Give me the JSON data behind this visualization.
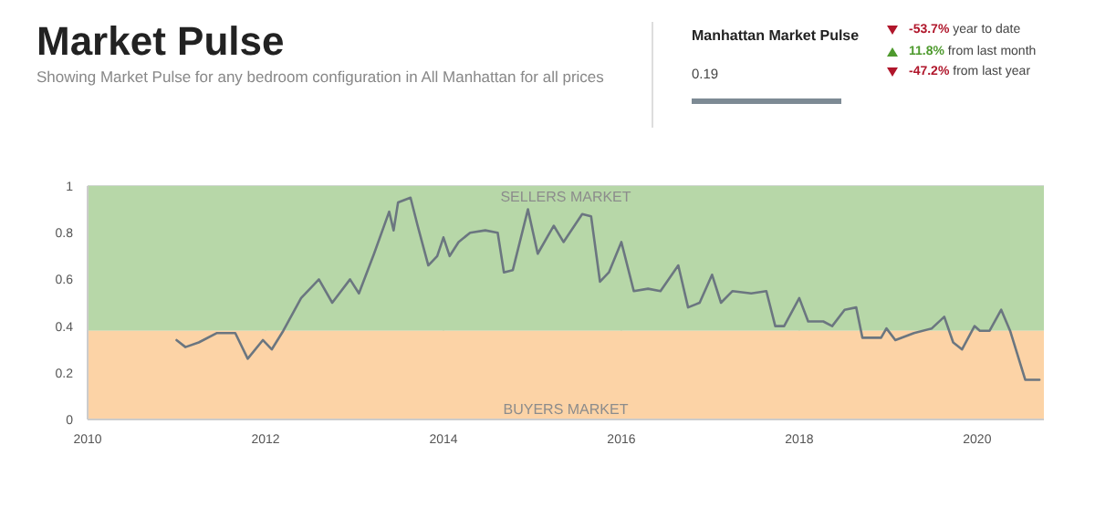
{
  "chart_data": {
    "type": "line",
    "title": "Market Pulse",
    "subtitle": "Showing Market Pulse for any bedroom configuration in All Manhattan for all prices",
    "annotations": [
      "Manhattan Market Pulse",
      "0.19",
      "-53.7% year to date",
      "11.8% from last month",
      "-47.2% from last year"
    ],
    "x": [
      2011.0,
      2011.1,
      2011.25,
      2011.45,
      2011.66,
      2011.8,
      2011.97,
      2012.07,
      2012.2,
      2012.4,
      2012.6,
      2012.75,
      2012.95,
      2013.05,
      2013.22,
      2013.39,
      2013.44,
      2013.49,
      2013.63,
      2013.71,
      2013.83,
      2013.93,
      2014.0,
      2014.07,
      2014.17,
      2014.3,
      2014.47,
      2014.61,
      2014.68,
      2014.78,
      2014.95,
      2015.06,
      2015.24,
      2015.35,
      2015.56,
      2015.66,
      2015.76,
      2015.86,
      2016.0,
      2016.14,
      2016.3,
      2016.44,
      2016.64,
      2016.75,
      2016.88,
      2017.02,
      2017.12,
      2017.25,
      2017.46,
      2017.63,
      2017.73,
      2017.83,
      2018.0,
      2018.1,
      2018.27,
      2018.37,
      2018.51,
      2018.64,
      2018.71,
      2018.92,
      2018.98,
      2019.08,
      2019.29,
      2019.49,
      2019.63,
      2019.73,
      2019.83,
      2019.97,
      2020.03,
      2020.14,
      2020.27,
      2020.37,
      2020.54,
      2020.7
    ],
    "series": [
      {
        "color": "#6b7680",
        "values": [
          0.34,
          0.31,
          0.33,
          0.37,
          0.37,
          0.26,
          0.34,
          0.3,
          0.38,
          0.52,
          0.6,
          0.5,
          0.6,
          0.54,
          0.71,
          0.89,
          0.81,
          0.93,
          0.95,
          0.83,
          0.66,
          0.7,
          0.78,
          0.7,
          0.76,
          0.8,
          0.81,
          0.8,
          0.63,
          0.64,
          0.9,
          0.71,
          0.83,
          0.76,
          0.88,
          0.87,
          0.59,
          0.63,
          0.76,
          0.55,
          0.56,
          0.55,
          0.66,
          0.48,
          0.5,
          0.62,
          0.5,
          0.55,
          0.54,
          0.55,
          0.4,
          0.4,
          0.52,
          0.42,
          0.42,
          0.4,
          0.47,
          0.48,
          0.35,
          0.35,
          0.39,
          0.34,
          0.37,
          0.39,
          0.44,
          0.33,
          0.3,
          0.4,
          0.38,
          0.38,
          0.47,
          0.38,
          0.17,
          0.17
        ]
      }
    ],
    "xlim": [
      2010,
      2020.75
    ],
    "xticks": [
      2010,
      2012,
      2014,
      2016,
      2018,
      2020
    ],
    "ylim": [
      0,
      1
    ],
    "yticks": [
      0,
      0.2,
      0.4,
      0.6,
      0.8,
      1
    ],
    "bands": [
      {
        "axis": "y",
        "from": 0.38,
        "to": 1,
        "label": "SELLERS MARKET",
        "color": "#b7d7a8"
      },
      {
        "axis": "y",
        "from": 0,
        "to": 0.38,
        "label": "BUYERS MARKET",
        "color": "#fcd3a6"
      }
    ],
    "grid": true,
    "marker": "none",
    "line_style": "solid"
  }
}
